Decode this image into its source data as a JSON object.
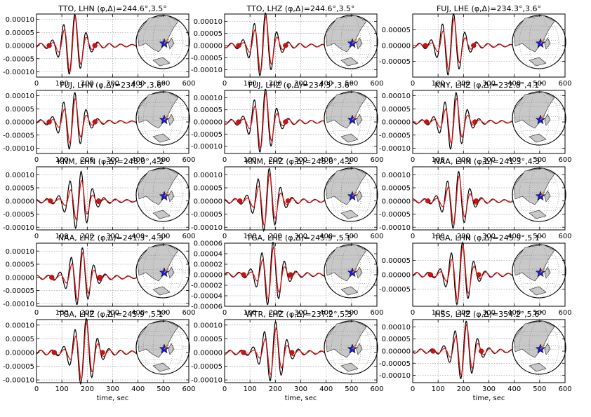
{
  "colors": {
    "observed": "#000000",
    "synthetic": "#e01010",
    "marker": "#cc1111",
    "land": "#c8c8c8",
    "ocean": "#ffffff",
    "star": "#1a1adb"
  },
  "shared": {
    "xlabel": "time, sec",
    "xlim": [
      0,
      600
    ],
    "xticks": [
      "0",
      "100",
      "200",
      "300",
      "400",
      "500",
      "600"
    ]
  },
  "chart_data": [
    {
      "type": "line",
      "title": "TTO, LHN (φ,Δ)=244.6°,3.5°",
      "xlabel": "",
      "ylim": [
        -0.00012,
        0.00012
      ],
      "yticks": [
        "0.00010",
        "0.00005",
        "0.00000",
        "-0.00005",
        "-0.00010"
      ],
      "yvals": [
        0.0001,
        5e-05,
        0,
        -5e-05,
        -0.0001
      ],
      "center": 140,
      "amp": 0.000105,
      "ratio": 0.95,
      "markers": [
        50,
        230
      ]
    },
    {
      "type": "line",
      "title": "TTO, LHZ (φ,Δ)=244.6°,3.5°",
      "xlabel": "",
      "ylim": [
        -0.00013,
        0.00013
      ],
      "yticks": [
        "0.00010",
        "0.00005",
        "0.00000",
        "-0.00005",
        "-0.00010"
      ],
      "yvals": [
        0.0001,
        5e-05,
        0,
        -5e-05,
        -0.0001
      ],
      "center": 150,
      "amp": 0.00012,
      "ratio": 0.9,
      "markers": [
        55,
        240
      ]
    },
    {
      "type": "line",
      "title": "FUJ, LHE (φ,Δ)=234.3°,3.6°",
      "xlabel": "",
      "ylim": [
        -0.0001,
        0.0001
      ],
      "yticks": [
        "0.00005",
        "0.00000",
        "-0.00005"
      ],
      "yvals": [
        5e-05,
        0,
        -5e-05
      ],
      "center": 150,
      "amp": 9e-05,
      "ratio": 0.85,
      "markers": [
        50,
        240
      ]
    },
    {
      "type": "line",
      "title": "FUJ, LHN (φ,Δ)=234.3°,3.6°",
      "xlabel": "",
      "ylim": [
        -0.00012,
        0.00012
      ],
      "yticks": [
        "0.00010",
        "0.00005",
        "0.00000",
        "-0.00005",
        "-0.00010"
      ],
      "yvals": [
        0.0001,
        5e-05,
        0,
        -5e-05,
        -0.0001
      ],
      "center": 140,
      "amp": 0.0001,
      "ratio": 0.8,
      "markers": [
        50,
        230
      ]
    },
    {
      "type": "line",
      "title": "FUJ, LHZ (φ,Δ)=234.3°,3.6°",
      "xlabel": "",
      "ylim": [
        -0.00013,
        0.00013
      ],
      "yticks": [
        "0.00010",
        "0.00005",
        "0.00000",
        "-0.00005",
        "-0.00010"
      ],
      "yvals": [
        0.0001,
        5e-05,
        0,
        -5e-05,
        -0.0001
      ],
      "center": 150,
      "amp": 0.00012,
      "ratio": 0.9,
      "markers": [
        55,
        240
      ]
    },
    {
      "type": "line",
      "title": "KNY, LHZ (φ,Δ)=232.8°,4.1°",
      "xlabel": "",
      "ylim": [
        -0.00012,
        0.00012
      ],
      "yticks": [
        "0.00010",
        "0.00005",
        "0.00000",
        "-0.00005",
        "-0.00010"
      ],
      "yvals": [
        0.0001,
        5e-05,
        0,
        -5e-05,
        -0.0001
      ],
      "center": 160,
      "amp": 0.0001,
      "ratio": 0.8,
      "markers": [
        55,
        245
      ]
    },
    {
      "type": "line",
      "title": "KNM, LHN (φ,Δ)=248.0°,4.2°",
      "xlabel": "",
      "ylim": [
        -0.00011,
        0.00013
      ],
      "yticks": [
        "0.00010",
        "0.00005",
        "0.00000",
        "-0.00005",
        "-0.00010"
      ],
      "yvals": [
        0.0001,
        5e-05,
        0,
        -5e-05,
        -0.0001
      ],
      "center": 165,
      "amp": 0.0001,
      "ratio": 0.7,
      "markers": [
        55,
        245
      ]
    },
    {
      "type": "line",
      "title": "KNM, LHZ (φ,Δ)=248.0°,4.2°",
      "xlabel": "",
      "ylim": [
        -0.00011,
        0.00013
      ],
      "yticks": [
        "0.00010",
        "0.00005",
        "0.00000",
        "-0.00005",
        "-0.00010"
      ],
      "yvals": [
        0.0001,
        5e-05,
        0,
        -5e-05,
        -0.0001
      ],
      "center": 165,
      "amp": 0.00011,
      "ratio": 0.85,
      "markers": [
        60,
        250
      ]
    },
    {
      "type": "line",
      "title": "NAA, LHN (φ,Δ)=241.3°,4.3°",
      "xlabel": "",
      "ylim": [
        -0.00011,
        0.00013
      ],
      "yticks": [
        "0.00010",
        "0.00005",
        "0.00000",
        "-0.00005",
        "-0.00010"
      ],
      "yvals": [
        0.0001,
        5e-05,
        0,
        -5e-05,
        -0.0001
      ],
      "center": 170,
      "amp": 0.0001,
      "ratio": 0.85,
      "markers": [
        60,
        250
      ]
    },
    {
      "type": "line",
      "title": "NAA, LHZ (φ,Δ)=241.3°,4.3°",
      "xlabel": "",
      "ylim": [
        -0.00011,
        0.00013
      ],
      "yticks": [
        "0.00010",
        "0.00005",
        "0.00000",
        "-0.00005",
        "-0.00010"
      ],
      "yvals": [
        0.0001,
        5e-05,
        0,
        -5e-05,
        -0.0001
      ],
      "center": 170,
      "amp": 0.0001,
      "ratio": 0.85,
      "markers": [
        60,
        250
      ]
    },
    {
      "type": "line",
      "title": "TGA, LHE (φ,Δ)=245.9°,5.1°",
      "xlabel": "",
      "ylim": [
        -6e-05,
        6e-05
      ],
      "yticks": [
        "0.00006",
        "0.00004",
        "0.00002",
        "0.00000",
        "-0.00002",
        "-0.00004",
        "-0.00006"
      ],
      "yvals": [
        6e-05,
        4e-05,
        2e-05,
        0,
        -2e-05,
        -4e-05,
        -6e-05
      ],
      "center": 180,
      "amp": 5.5e-05,
      "ratio": 0.85,
      "markers": [
        75,
        260
      ]
    },
    {
      "type": "line",
      "title": "TGA, LHN (φ,Δ)=245.9°,5.1°",
      "xlabel": "",
      "ylim": [
        -0.00011,
        0.00011
      ],
      "yticks": [
        "0.00005",
        "0.00000",
        "-0.00005"
      ],
      "yvals": [
        5e-05,
        0,
        -5e-05
      ],
      "center": 185,
      "amp": 0.0001,
      "ratio": 0.9,
      "markers": [
        70,
        260
      ]
    },
    {
      "type": "line",
      "title": "TGA, LHZ (φ,Δ)=245.9°,5.1°",
      "xlabel": "time, sec",
      "ylim": [
        -0.00011,
        0.00012
      ],
      "yticks": [
        "0.00010",
        "0.00005",
        "0.00000",
        "-0.00005",
        "-0.00010"
      ],
      "yvals": [
        0.0001,
        5e-05,
        0,
        -5e-05,
        -0.0001
      ],
      "center": 185,
      "amp": 0.00011,
      "ratio": 0.9,
      "markers": [
        70,
        260
      ]
    },
    {
      "type": "line",
      "title": "WTR, LHZ (φ,Δ)=237.2°,5.3°",
      "xlabel": "time, sec",
      "ylim": [
        -0.00011,
        0.00012
      ],
      "yticks": [
        "0.00010",
        "0.00005",
        "0.00000",
        "-0.00005",
        "-0.00010"
      ],
      "yvals": [
        0.0001,
        5e-05,
        0,
        -5e-05,
        -0.0001
      ],
      "center": 190,
      "amp": 0.0001,
      "ratio": 0.8,
      "markers": [
        75,
        265
      ]
    },
    {
      "type": "line",
      "title": "HSS, LHZ (φ,Δ)=354.2°,5.6°",
      "xlabel": "time, sec",
      "ylim": [
        -0.00013,
        0.00013
      ],
      "yticks": [
        "0.00010",
        "0.00005",
        "0.00000",
        "-0.00005",
        "-0.00010"
      ],
      "yvals": [
        0.0001,
        5e-05,
        0,
        -5e-05,
        -0.0001
      ],
      "center": 200,
      "amp": 0.00011,
      "ratio": 0.9,
      "markers": [
        80,
        270
      ]
    }
  ]
}
